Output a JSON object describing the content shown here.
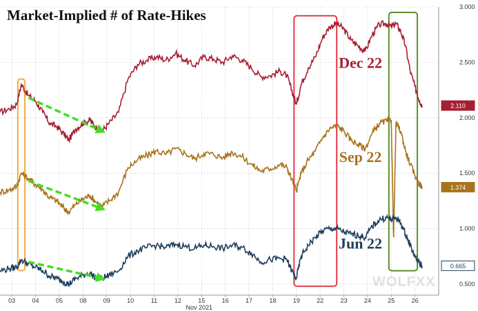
{
  "title": "Market-Implied # of Rate-Hikes",
  "watermark": "WOLFXX",
  "chart_data": {
    "type": "line",
    "title": "Market-Implied # of Rate-Hikes",
    "xlabel": "Nov 2021",
    "ylabel": "",
    "ylim": [
      0.4,
      3.0
    ],
    "y_axis_side": "right",
    "y_ticks": [
      3.0,
      2.5,
      2.0,
      1.5,
      1.0,
      0.5
    ],
    "y_tick_labels": [
      "3.000",
      "2.500",
      "2.000",
      "1.500",
      "1.000",
      "0.500"
    ],
    "x_range": [
      0,
      18.5
    ],
    "x_ticks": [
      {
        "pos": 0.5,
        "label": "03"
      },
      {
        "pos": 1.5,
        "label": "04"
      },
      {
        "pos": 2.5,
        "label": "05"
      },
      {
        "pos": 3.5,
        "label": "08"
      },
      {
        "pos": 4.5,
        "label": "09"
      },
      {
        "pos": 5.5,
        "label": "10"
      },
      {
        "pos": 6.5,
        "label": "11"
      },
      {
        "pos": 7.5,
        "label": "12"
      },
      {
        "pos": 8.5,
        "label": "15"
      },
      {
        "pos": 9.5,
        "label": "16"
      },
      {
        "pos": 10.5,
        "label": "17"
      },
      {
        "pos": 11.5,
        "label": "18"
      },
      {
        "pos": 12.5,
        "label": "19"
      },
      {
        "pos": 13.5,
        "label": "22"
      },
      {
        "pos": 14.5,
        "label": "23"
      },
      {
        "pos": 15.5,
        "label": "24"
      },
      {
        "pos": 16.5,
        "label": "25"
      },
      {
        "pos": 17.5,
        "label": "26"
      }
    ],
    "month_label": "Nov 2021",
    "series": [
      {
        "name": "Dec 22",
        "color": "#a51f32",
        "last_value": 2.11,
        "last_label": "2.110",
        "points": [
          [
            0.0,
            2.05
          ],
          [
            0.4,
            2.08
          ],
          [
            0.7,
            2.12
          ],
          [
            0.9,
            2.3
          ],
          [
            1.2,
            2.2
          ],
          [
            1.5,
            2.15
          ],
          [
            1.8,
            2.05
          ],
          [
            2.1,
            1.95
          ],
          [
            2.4,
            1.92
          ],
          [
            2.7,
            1.85
          ],
          [
            2.9,
            1.8
          ],
          [
            3.2,
            1.9
          ],
          [
            3.5,
            1.95
          ],
          [
            3.8,
            1.98
          ],
          [
            4.0,
            1.92
          ],
          [
            4.3,
            1.88
          ],
          [
            4.6,
            1.95
          ],
          [
            5.0,
            2.05
          ],
          [
            5.4,
            2.35
          ],
          [
            5.8,
            2.48
          ],
          [
            6.2,
            2.52
          ],
          [
            6.6,
            2.55
          ],
          [
            7.0,
            2.52
          ],
          [
            7.4,
            2.58
          ],
          [
            7.8,
            2.52
          ],
          [
            8.2,
            2.47
          ],
          [
            8.6,
            2.55
          ],
          [
            9.0,
            2.53
          ],
          [
            9.4,
            2.5
          ],
          [
            9.8,
            2.56
          ],
          [
            10.2,
            2.52
          ],
          [
            10.6,
            2.45
          ],
          [
            11.0,
            2.37
          ],
          [
            11.4,
            2.38
          ],
          [
            11.8,
            2.42
          ],
          [
            12.1,
            2.38
          ],
          [
            12.3,
            2.25
          ],
          [
            12.5,
            2.12
          ],
          [
            12.7,
            2.3
          ],
          [
            13.0,
            2.45
          ],
          [
            13.3,
            2.55
          ],
          [
            13.6,
            2.72
          ],
          [
            13.9,
            2.82
          ],
          [
            14.2,
            2.85
          ],
          [
            14.5,
            2.8
          ],
          [
            14.8,
            2.7
          ],
          [
            15.1,
            2.65
          ],
          [
            15.4,
            2.6
          ],
          [
            15.7,
            2.75
          ],
          [
            16.0,
            2.84
          ],
          [
            16.3,
            2.85
          ],
          [
            16.5,
            2.82
          ],
          [
            16.7,
            2.85
          ],
          [
            16.9,
            2.78
          ],
          [
            17.1,
            2.65
          ],
          [
            17.3,
            2.42
          ],
          [
            17.5,
            2.28
          ],
          [
            17.7,
            2.15
          ],
          [
            17.8,
            2.11
          ]
        ]
      },
      {
        "name": "Sep 22",
        "color": "#a8731c",
        "last_value": 1.374,
        "last_label": "1.374",
        "points": [
          [
            0.0,
            1.33
          ],
          [
            0.4,
            1.35
          ],
          [
            0.7,
            1.38
          ],
          [
            0.9,
            1.5
          ],
          [
            1.2,
            1.45
          ],
          [
            1.5,
            1.4
          ],
          [
            1.8,
            1.35
          ],
          [
            2.1,
            1.28
          ],
          [
            2.4,
            1.25
          ],
          [
            2.7,
            1.18
          ],
          [
            2.9,
            1.15
          ],
          [
            3.2,
            1.22
          ],
          [
            3.5,
            1.27
          ],
          [
            3.8,
            1.3
          ],
          [
            4.0,
            1.25
          ],
          [
            4.3,
            1.2
          ],
          [
            4.6,
            1.25
          ],
          [
            5.0,
            1.33
          ],
          [
            5.4,
            1.55
          ],
          [
            5.8,
            1.62
          ],
          [
            6.2,
            1.66
          ],
          [
            6.6,
            1.7
          ],
          [
            7.0,
            1.67
          ],
          [
            7.4,
            1.72
          ],
          [
            7.8,
            1.68
          ],
          [
            8.2,
            1.63
          ],
          [
            8.6,
            1.68
          ],
          [
            9.0,
            1.67
          ],
          [
            9.4,
            1.64
          ],
          [
            9.8,
            1.69
          ],
          [
            10.2,
            1.65
          ],
          [
            10.6,
            1.58
          ],
          [
            11.0,
            1.52
          ],
          [
            11.4,
            1.54
          ],
          [
            11.8,
            1.58
          ],
          [
            12.1,
            1.55
          ],
          [
            12.3,
            1.45
          ],
          [
            12.5,
            1.34
          ],
          [
            12.7,
            1.5
          ],
          [
            13.0,
            1.62
          ],
          [
            13.3,
            1.7
          ],
          [
            13.6,
            1.82
          ],
          [
            13.9,
            1.9
          ],
          [
            14.2,
            1.93
          ],
          [
            14.5,
            1.88
          ],
          [
            14.8,
            1.8
          ],
          [
            15.1,
            1.76
          ],
          [
            15.4,
            1.72
          ],
          [
            15.7,
            1.86
          ],
          [
            16.0,
            1.95
          ],
          [
            16.3,
            1.97
          ],
          [
            16.5,
            1.98
          ],
          [
            16.6,
            0.92
          ],
          [
            16.7,
            1.95
          ],
          [
            16.9,
            1.88
          ],
          [
            17.1,
            1.7
          ],
          [
            17.3,
            1.58
          ],
          [
            17.5,
            1.48
          ],
          [
            17.7,
            1.4
          ],
          [
            17.8,
            1.374
          ]
        ]
      },
      {
        "name": "Jun 22",
        "color": "#1f3e5e",
        "last_value": 0.665,
        "last_label": "0.665",
        "points": [
          [
            0.0,
            0.62
          ],
          [
            0.4,
            0.64
          ],
          [
            0.7,
            0.65
          ],
          [
            0.9,
            0.72
          ],
          [
            1.2,
            0.68
          ],
          [
            1.5,
            0.65
          ],
          [
            1.8,
            0.62
          ],
          [
            2.1,
            0.57
          ],
          [
            2.4,
            0.55
          ],
          [
            2.7,
            0.52
          ],
          [
            2.9,
            0.5
          ],
          [
            3.2,
            0.55
          ],
          [
            3.5,
            0.58
          ],
          [
            3.8,
            0.6
          ],
          [
            4.0,
            0.56
          ],
          [
            4.3,
            0.55
          ],
          [
            4.6,
            0.58
          ],
          [
            5.0,
            0.62
          ],
          [
            5.4,
            0.75
          ],
          [
            5.8,
            0.8
          ],
          [
            6.2,
            0.83
          ],
          [
            6.6,
            0.85
          ],
          [
            7.0,
            0.83
          ],
          [
            7.4,
            0.86
          ],
          [
            7.8,
            0.84
          ],
          [
            8.2,
            0.82
          ],
          [
            8.6,
            0.85
          ],
          [
            9.0,
            0.84
          ],
          [
            9.4,
            0.82
          ],
          [
            9.8,
            0.85
          ],
          [
            10.2,
            0.83
          ],
          [
            10.6,
            0.78
          ],
          [
            11.0,
            0.7
          ],
          [
            11.4,
            0.72
          ],
          [
            11.8,
            0.73
          ],
          [
            12.1,
            0.72
          ],
          [
            12.3,
            0.62
          ],
          [
            12.5,
            0.55
          ],
          [
            12.7,
            0.75
          ],
          [
            13.0,
            0.85
          ],
          [
            13.3,
            0.92
          ],
          [
            13.6,
            0.98
          ],
          [
            13.9,
            1.0
          ],
          [
            14.2,
            1.0
          ],
          [
            14.5,
            0.97
          ],
          [
            14.8,
            0.95
          ],
          [
            15.1,
            0.94
          ],
          [
            15.4,
            0.92
          ],
          [
            15.7,
            1.02
          ],
          [
            16.0,
            1.08
          ],
          [
            16.3,
            1.1
          ],
          [
            16.5,
            1.08
          ],
          [
            16.7,
            1.1
          ],
          [
            16.9,
            1.05
          ],
          [
            17.1,
            0.95
          ],
          [
            17.3,
            0.85
          ],
          [
            17.5,
            0.75
          ],
          [
            17.7,
            0.68
          ],
          [
            17.8,
            0.665
          ]
        ]
      }
    ],
    "trend_arrows": [
      {
        "color": "#44dd22",
        "from": [
          1.2,
          2.18
        ],
        "to": [
          4.3,
          1.88
        ]
      },
      {
        "color": "#44dd22",
        "from": [
          1.2,
          1.43
        ],
        "to": [
          4.3,
          1.18
        ]
      },
      {
        "color": "#44dd22",
        "from": [
          1.2,
          0.7
        ],
        "to": [
          4.3,
          0.55
        ]
      }
    ],
    "highlight_boxes": [
      {
        "color": "#f2a93b",
        "x": [
          0.75,
          1.05
        ],
        "y": [
          0.62,
          2.35
        ]
      },
      {
        "color": "#e33b4a",
        "x": [
          12.4,
          14.2
        ],
        "y": [
          0.48,
          2.92
        ]
      },
      {
        "color": "#5a8e2a",
        "x": [
          16.4,
          17.6
        ],
        "y": [
          0.62,
          2.95
        ]
      }
    ]
  }
}
